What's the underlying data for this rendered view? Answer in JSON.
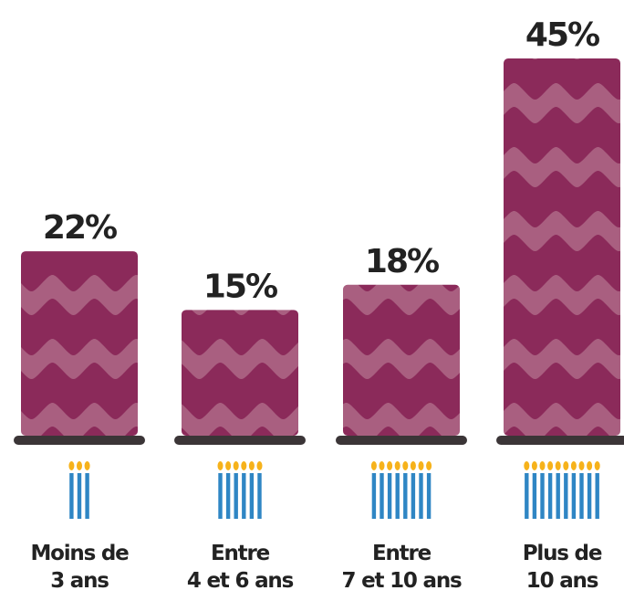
{
  "chart_data": {
    "type": "bar",
    "categories": [
      [
        "Moins de",
        "3 ans"
      ],
      [
        "Entre",
        "4 et 6 ans"
      ],
      [
        "Entre",
        "7 et 10 ans"
      ],
      [
        "Plus de",
        "10 ans"
      ]
    ],
    "values": [
      22,
      15,
      18,
      45
    ],
    "value_labels": [
      "22%",
      "15%",
      "18%",
      "45%"
    ],
    "candle_counts": [
      3,
      6,
      8,
      10
    ],
    "ylim": [
      0,
      45
    ],
    "grid": false,
    "legend": "none",
    "colors": {
      "bar": "#8b2a5a",
      "wave": "#a95f80",
      "plate": "#3b3537",
      "candle": "#2f86c4",
      "flame": "#f6b21b",
      "text": "#222222"
    }
  }
}
